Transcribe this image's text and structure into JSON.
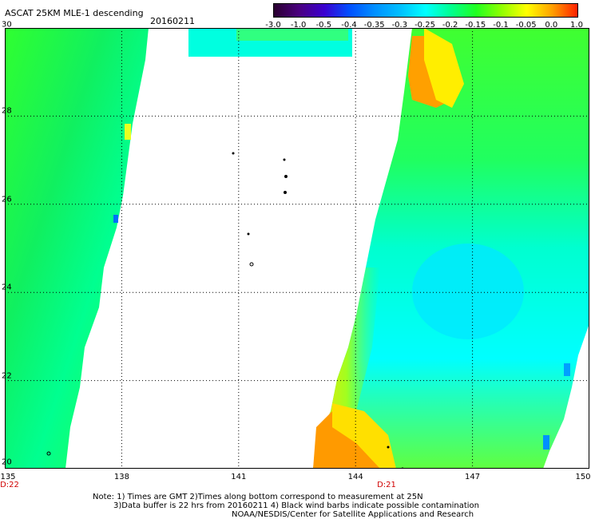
{
  "title": "ASCAT 25KM MLE-1 descending",
  "date": "20160211",
  "colorbar": {
    "ticks": [
      "-3.0",
      "-1.0",
      "-0.5",
      "-0.4",
      "-0.35",
      "-0.3",
      "-0.25",
      "-0.2",
      "-0.15",
      "-0.1",
      "-0.05",
      "0.0",
      "1.0"
    ],
    "colors": [
      "#2a0030",
      "#4a0080",
      "#3a00d0",
      "#0050ff",
      "#0090ff",
      "#00c0ff",
      "#00ffff",
      "#00ff90",
      "#20ff20",
      "#90ff00",
      "#ffff00",
      "#ffa000",
      "#ff2000"
    ]
  },
  "map": {
    "lon_ticks": [
      "135",
      "138",
      "141",
      "144",
      "147",
      "150"
    ],
    "lat_ticks": [
      "30",
      "28",
      "26",
      "24",
      "22",
      "20"
    ],
    "lon_range": [
      135,
      150
    ],
    "lat_range": [
      20,
      30
    ],
    "grid": "dotted"
  },
  "time_markers": [
    "D:22",
    "D:21"
  ],
  "notes": {
    "line1": "Note: 1) Times are GMT 2)Times along bottom correspond to measurement at 25N",
    "line2": "3)Data buffer is 22 hrs from 20160211 4) Black wind barbs indicate possible contamination",
    "line3": "NOAA/NESDIS/Center for Satellite Applications and Research"
  }
}
